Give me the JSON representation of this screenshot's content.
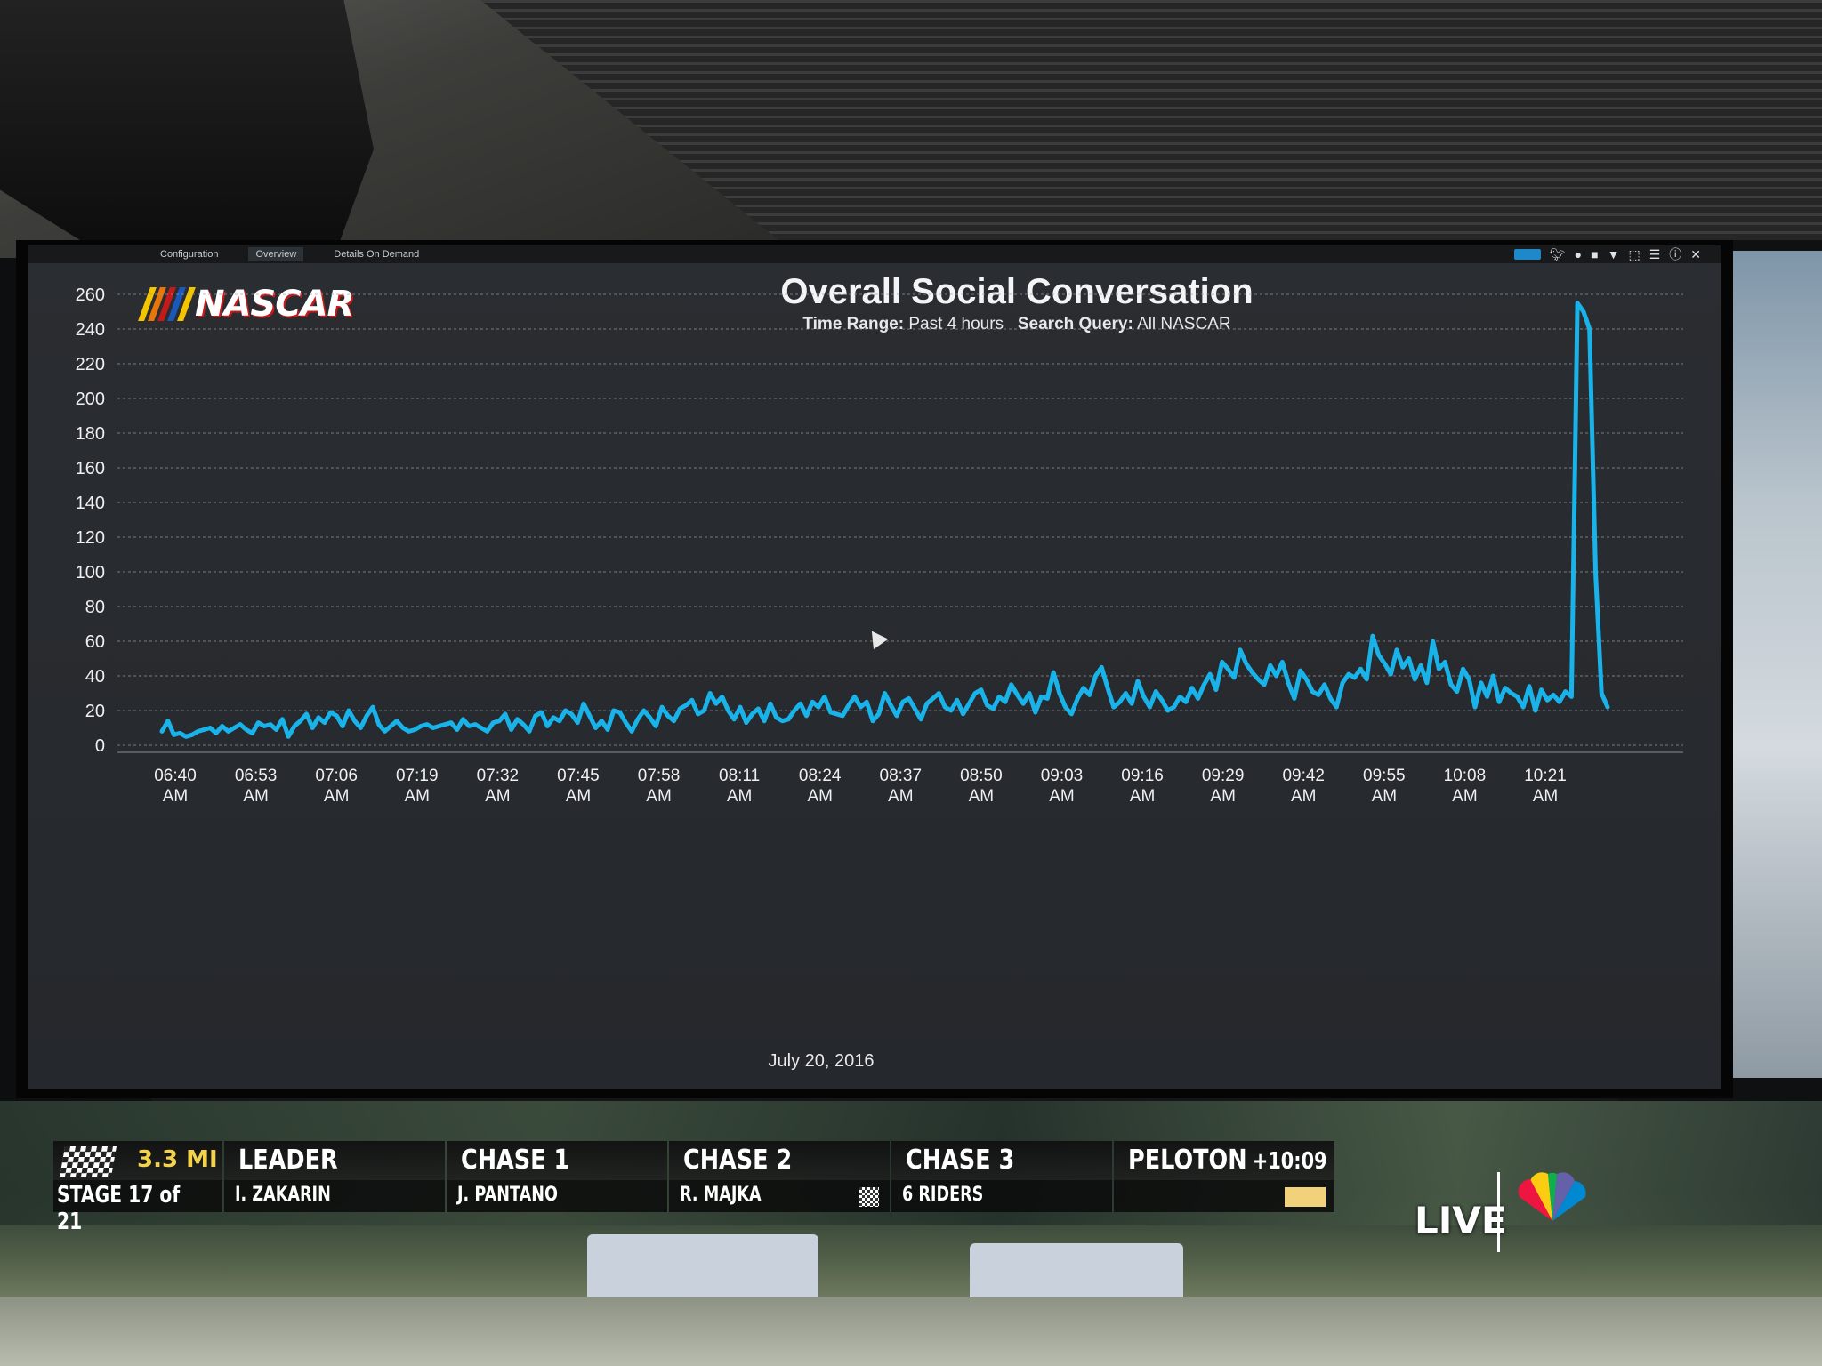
{
  "window": {
    "tabs": [
      {
        "label": "Configuration",
        "active": false
      },
      {
        "label": "Overview",
        "active": true
      },
      {
        "label": "Details On Demand",
        "active": false
      }
    ],
    "toolbar_icons": [
      "live-pill-icon",
      "twitter-icon",
      "user-icon",
      "bookmark-icon",
      "filter-icon",
      "select-icon",
      "menu-icon",
      "help-icon",
      "close-icon"
    ]
  },
  "brand": {
    "logo_text": "NASCAR",
    "stripe_colors": [
      "#f5c400",
      "#e8760a",
      "#c61a1a",
      "#1c58b7"
    ]
  },
  "header": {
    "title": "Overall Social Conversation",
    "time_range_label": "Time Range:",
    "time_range_value": "Past 4 hours",
    "query_label": "Search Query:",
    "query_value": "All NASCAR"
  },
  "chart_data": {
    "type": "line",
    "title": "Overall Social Conversation",
    "xlabel": "July 20, 2016",
    "ylabel": "",
    "ylim": [
      0,
      260
    ],
    "yticks": [
      0,
      20,
      40,
      60,
      80,
      100,
      120,
      140,
      160,
      180,
      200,
      220,
      240,
      260
    ],
    "xticks": [
      "06:40 AM",
      "06:53 AM",
      "07:06 AM",
      "07:19 AM",
      "07:32 AM",
      "07:45 AM",
      "07:58 AM",
      "08:11 AM",
      "08:24 AM",
      "08:37 AM",
      "08:50 AM",
      "09:03 AM",
      "09:16 AM",
      "09:29 AM",
      "09:42 AM",
      "09:55 AM",
      "10:08 AM",
      "10:21 AM"
    ],
    "grid": true,
    "line_color": "#19b3ea",
    "series": [
      {
        "values": [
          8,
          14,
          6,
          7,
          5,
          6,
          8,
          9,
          10,
          7,
          11,
          8,
          10,
          12,
          9,
          7,
          13,
          11,
          12,
          9,
          15,
          5,
          11,
          14,
          18,
          10,
          16,
          13,
          19,
          17,
          11,
          20,
          14,
          10,
          17,
          22,
          12,
          8,
          11,
          14,
          10,
          8,
          9,
          11,
          12,
          10,
          11,
          12,
          13,
          9,
          15,
          11,
          12,
          10,
          8,
          13,
          14,
          18,
          9,
          15,
          12,
          8,
          17,
          19,
          11,
          16,
          14,
          20,
          18,
          13,
          24,
          17,
          10,
          14,
          9,
          20,
          19,
          13,
          8,
          15,
          20,
          16,
          11,
          22,
          17,
          14,
          21,
          23,
          26,
          18,
          20,
          30,
          24,
          28,
          20,
          15,
          22,
          13,
          18,
          21,
          14,
          24,
          16,
          14,
          15,
          20,
          24,
          17,
          25,
          22,
          28,
          19,
          18,
          17,
          23,
          28,
          22,
          25,
          14,
          18,
          30,
          23,
          17,
          25,
          27,
          21,
          15,
          24,
          27,
          30,
          22,
          20,
          26,
          18,
          24,
          30,
          32,
          23,
          21,
          28,
          25,
          35,
          29,
          24,
          30,
          19,
          28,
          27,
          42,
          30,
          22,
          18,
          27,
          33,
          29,
          40,
          45,
          33,
          22,
          25,
          30,
          24,
          37,
          28,
          22,
          31,
          26,
          20,
          22,
          28,
          25,
          33,
          27,
          35,
          41,
          32,
          48,
          44,
          39,
          55,
          47,
          42,
          38,
          35,
          46,
          40,
          48,
          36,
          27,
          43,
          38,
          31,
          29,
          35,
          27,
          22,
          36,
          41,
          39,
          44,
          38,
          63,
          52,
          47,
          41,
          55,
          45,
          50,
          38,
          46,
          36,
          60,
          44,
          48,
          35,
          31,
          44,
          38,
          22,
          36,
          28,
          40,
          25,
          33,
          30,
          28,
          22,
          34,
          20,
          32,
          26,
          29,
          25,
          31,
          28,
          255,
          250,
          240,
          100,
          30,
          22
        ]
      }
    ]
  },
  "broadcast": {
    "distance": "3.3 MI",
    "stage": "STAGE 17 of 21",
    "groups": [
      {
        "head": "LEADER",
        "name": "I. ZAKARIN"
      },
      {
        "head": "CHASE 1",
        "name": "J. PANTANO"
      },
      {
        "head": "CHASE 2",
        "name": "R. MAJKA"
      },
      {
        "head": "CHASE 3",
        "name": "6 RIDERS"
      },
      {
        "head": "PELOTON",
        "name": ""
      }
    ],
    "peloton_gap": "+10:09",
    "live_label": "LIVE"
  }
}
